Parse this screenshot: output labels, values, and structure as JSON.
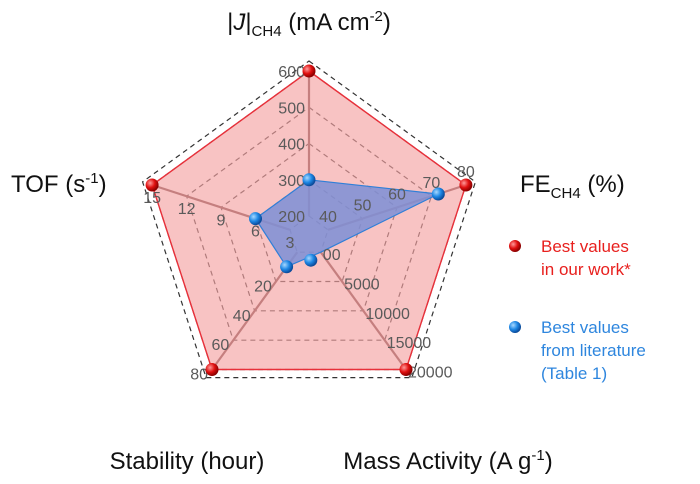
{
  "chart_data": {
    "type": "radar",
    "axes": [
      {
        "key": "j",
        "label": "|J|",
        "label_sub": "CH4",
        "label_unit": " (mA cm",
        "label_sup": "-2",
        "label_end": ")",
        "min": 200,
        "max": 600,
        "ticks": [
          "200",
          "300",
          "400",
          "500",
          "600"
        ]
      },
      {
        "key": "fe",
        "label": "FE",
        "label_sub": "CH4",
        "label_unit": " (%)",
        "label_sup": "",
        "label_end": "",
        "min": 40,
        "max": 80,
        "ticks": [
          "40",
          "50",
          "60",
          "70",
          "80"
        ]
      },
      {
        "key": "mass",
        "label": "Mass Activity (A g",
        "label_sub": "",
        "label_unit": "",
        "label_sup": "-1",
        "label_end": ")",
        "min": 0,
        "max": 20000,
        "ticks": [
          "00",
          "5000",
          "10000",
          "15000",
          "20000"
        ]
      },
      {
        "key": "stability",
        "label": "Stability (hour)",
        "label_sub": "",
        "label_unit": "",
        "label_sup": "",
        "label_end": "",
        "min": 0,
        "max": 80,
        "ticks": [
          "20",
          "40",
          "60",
          "80"
        ],
        "tick_values": [
          20,
          40,
          60,
          80
        ]
      },
      {
        "key": "tof",
        "label": "TOF (s",
        "label_sub": "",
        "label_unit": "",
        "label_sup": "-1",
        "label_end": ")",
        "min": 3,
        "max": 15,
        "ticks": [
          "3",
          "6",
          "9",
          "12",
          "15"
        ]
      }
    ],
    "series": [
      {
        "name": "Best values in our work*",
        "color": "#e8303a",
        "fill": "#f5a3a3",
        "values": [
          600,
          80,
          20000,
          80,
          15
        ]
      },
      {
        "name": "Best values from literature (Table 1)",
        "color": "#2f7fd8",
        "fill": "#7d8fd6",
        "values": [
          300,
          72,
          0,
          10,
          6
        ]
      }
    ],
    "legend": {
      "position": "right",
      "items": [
        {
          "line1": "Best values",
          "line2": "in our work*",
          "line3": "",
          "color": "#e8201e"
        },
        {
          "line1": "Best values",
          "line2": "from literature",
          "line3": "(Table 1)",
          "color": "#2e86de"
        }
      ]
    },
    "grid": true
  }
}
